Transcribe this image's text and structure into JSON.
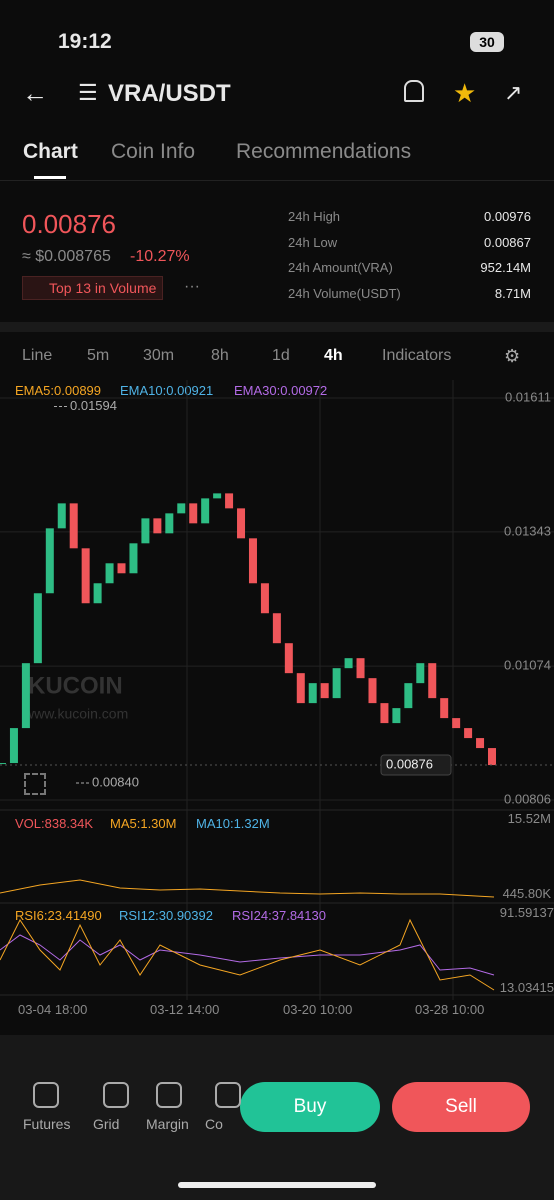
{
  "status": {
    "time": "19:12",
    "battery": "30"
  },
  "header": {
    "pair": "VRA/USDT"
  },
  "tabs": [
    "Chart",
    "Coin Info",
    "Recommendations"
  ],
  "ticker": {
    "price": "0.00876",
    "usd": "≈ $0.008765",
    "change": "-10.27%",
    "badge": "Top 13 in Volume",
    "stats": [
      [
        "24h High",
        "0.00976"
      ],
      [
        "24h Low",
        "0.00867"
      ],
      [
        "24h Amount(VRA)",
        "952.14M"
      ],
      [
        "24h Volume(USDT)",
        "8.71M"
      ]
    ]
  },
  "intervals": [
    "Line",
    "5m",
    "30m",
    "8h",
    "1d",
    "4h",
    "Indicators"
  ],
  "ema": [
    "EMA5:0.00899",
    "EMA10:0.00921",
    "EMA30:0.00972"
  ],
  "chart": {
    "type": "candlestick",
    "ylim": [
      0.00786,
      0.01637
    ],
    "yticks": [
      0.01611,
      0.01343,
      0.01074,
      0.00806
    ],
    "high_marker": 0.01594,
    "low_marker": {
      "value": 0.0084,
      "label": "0.00840"
    },
    "current": 0.00876,
    "up_color": "#2ebd85",
    "down_color": "#f0565a",
    "closes": [
      0.0088,
      0.0095,
      0.0108,
      0.0122,
      0.0135,
      0.014,
      0.0131,
      0.012,
      0.0124,
      0.0128,
      0.0126,
      0.0132,
      0.0137,
      0.0134,
      0.0138,
      0.014,
      0.0136,
      0.0141,
      0.0142,
      0.0139,
      0.0133,
      0.0124,
      0.0118,
      0.0112,
      0.0106,
      0.01,
      0.0104,
      0.0101,
      0.0107,
      0.0109,
      0.0105,
      0.01,
      0.0096,
      0.0099,
      0.0104,
      0.0108,
      0.0101,
      0.0097,
      0.0095,
      0.0093,
      0.0091,
      0.00876
    ]
  },
  "watermark": [
    "KUCOIN",
    "www.kucoin.com"
  ],
  "volume": {
    "labels": [
      "VOL:838.34K",
      "MA5:1.30M",
      "MA10:1.32M"
    ],
    "axis": [
      "15.52M",
      "445.80K"
    ]
  },
  "rsi": {
    "labels": [
      "RSI6:23.41490",
      "RSI12:30.90392",
      "RSI24:37.84130"
    ],
    "axis": [
      "91.59137",
      "13.03415"
    ]
  },
  "dates": [
    "03-04 18:00",
    "03-12 14:00",
    "03-20 10:00",
    "03-28 10:00"
  ],
  "nav": [
    "Futures",
    "Grid",
    "Margin",
    "Co"
  ],
  "actions": [
    "Buy",
    "Sell"
  ]
}
